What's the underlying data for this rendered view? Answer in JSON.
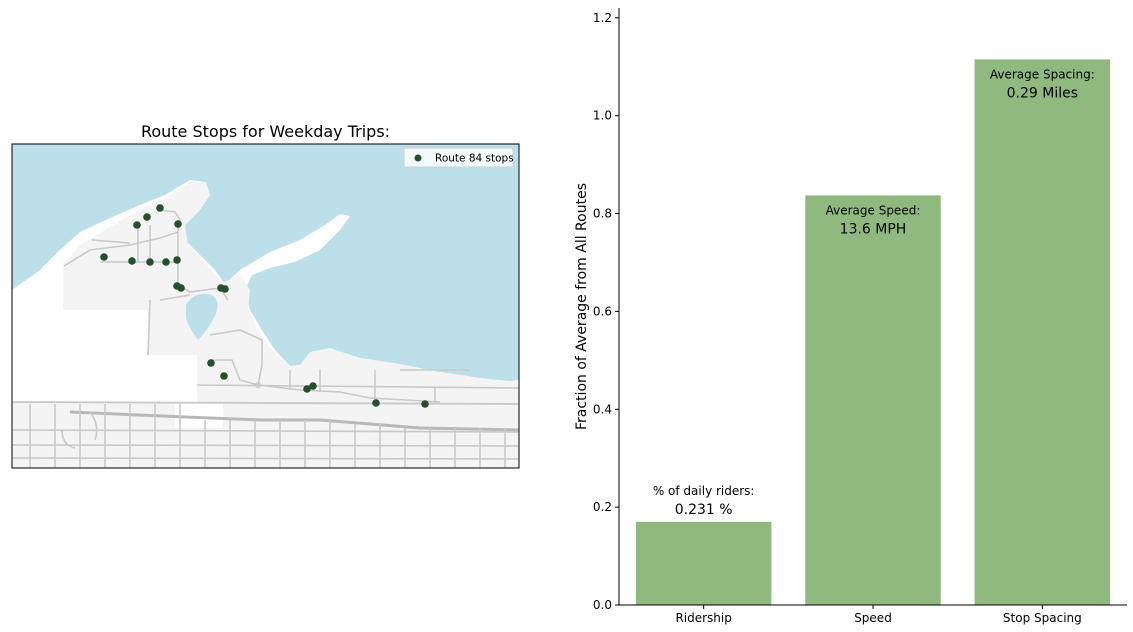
{
  "map": {
    "title": "Route Stops for Weekday Trips:",
    "legend_label": "Route 84 stops",
    "colors": {
      "water": "#bddfea",
      "land": "#f4f4f4",
      "road": "#c9c9c9",
      "stop": "#24512c"
    }
  },
  "chart_data": {
    "type": "bar",
    "categories": [
      "Ridership",
      "Speed",
      "Stop Spacing"
    ],
    "values": [
      0.17,
      0.837,
      1.115
    ],
    "ylabel": "Fraction of Average from All Routes",
    "xlabel": "",
    "ylim": [
      0,
      1.22
    ],
    "yticks": [
      0.0,
      0.2,
      0.4,
      0.6,
      0.8,
      1.0,
      1.2
    ],
    "bar_color": "#8fb97e",
    "grid": false,
    "annotations": [
      {
        "label": "% of daily riders:",
        "value": "0.231 %"
      },
      {
        "label": "Average Speed:",
        "value": "13.6 MPH"
      },
      {
        "label": "Average Spacing:",
        "value": "0.29 Miles"
      }
    ]
  }
}
